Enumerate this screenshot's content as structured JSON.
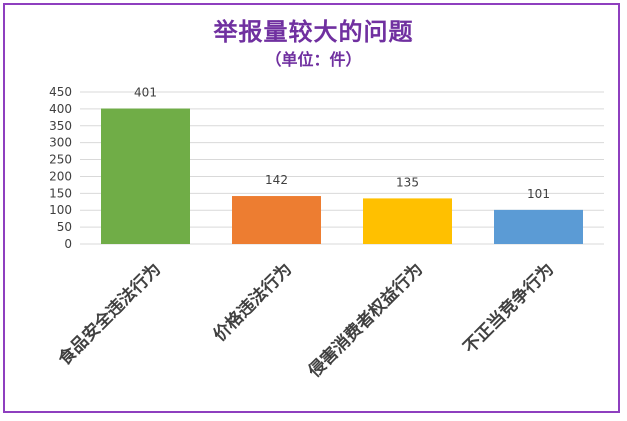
{
  "chart_data": {
    "type": "bar",
    "title": "举报量较大的问题",
    "subtitle": "（单位：件）",
    "categories": [
      "食品安全违法行为",
      "价格违法行为",
      "侵害消费者权益行为",
      "不正当竞争行为"
    ],
    "values": [
      401,
      142,
      135,
      101
    ],
    "colors": [
      "#70ad47",
      "#ed7d31",
      "#ffc000",
      "#5b9bd5"
    ],
    "ylim": [
      0,
      450
    ],
    "yticks": [
      0,
      50,
      100,
      150,
      200,
      250,
      300,
      350,
      400,
      450
    ],
    "grid": true,
    "legend": "none"
  }
}
